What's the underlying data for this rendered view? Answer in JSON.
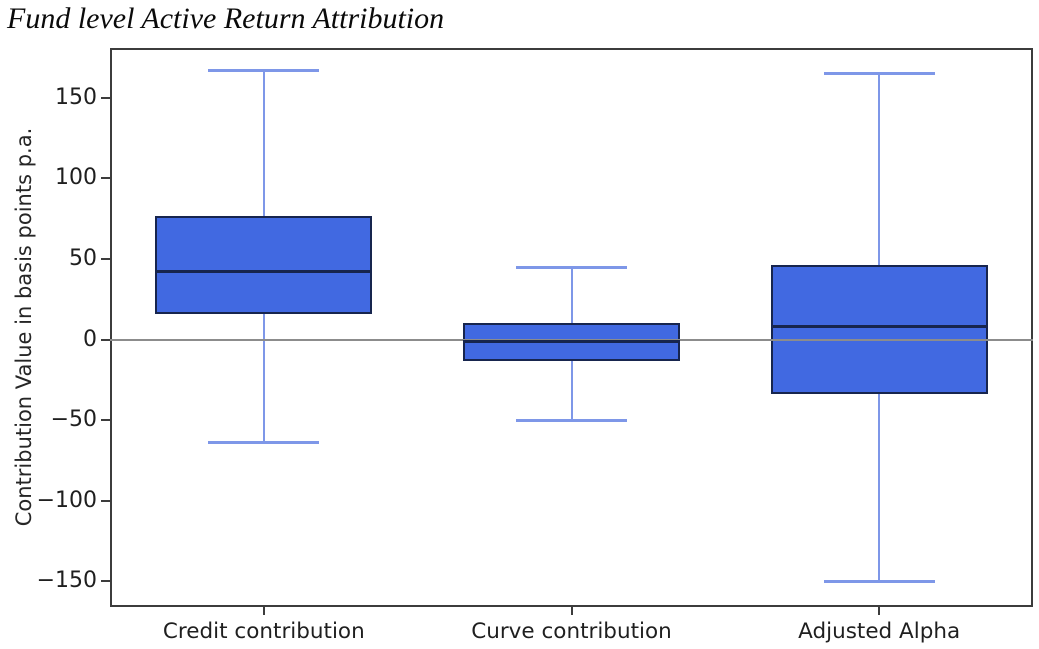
{
  "chart_data": {
    "type": "boxplot",
    "title": "Fund level Active Return Attribution",
    "ylabel": "Contribution Value in basis points p.a.",
    "xlabel": "",
    "categories": [
      "Credit contribution",
      "Curve contribution",
      "Adjusted Alpha"
    ],
    "boxes": [
      {
        "label": "Credit contribution",
        "whisker_low": -64,
        "q1": 16,
        "median": 42,
        "q3": 77,
        "whisker_high": 167
      },
      {
        "label": "Curve contribution",
        "whisker_low": -50,
        "q1": -13,
        "median": -1,
        "q3": 10,
        "whisker_high": 45
      },
      {
        "label": "Adjusted Alpha",
        "whisker_low": -150,
        "q1": -34,
        "median": 8,
        "q3": 46,
        "whisker_high": 165
      }
    ],
    "units": "basis points p.a.",
    "ylim": [
      -166,
      181
    ],
    "yticks": [
      150,
      100,
      50,
      0,
      -50,
      -100,
      -150
    ],
    "ytick_labels": [
      "150",
      "100",
      "50",
      "0",
      "−50",
      "−100",
      "−150"
    ],
    "zero_line": 0,
    "grid": false,
    "legend": null,
    "colors": {
      "box_fill": "#4169e1",
      "box_edge": "#17254e",
      "median": "#17254e",
      "whisker": "#7e97e8",
      "zero_line": "#8c8c8c",
      "spine": "#3c3c3c",
      "text": "#1f1f1f"
    }
  }
}
